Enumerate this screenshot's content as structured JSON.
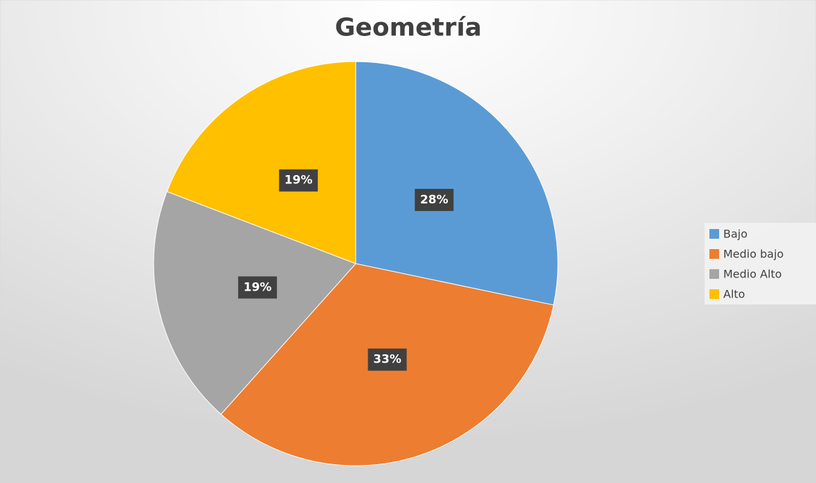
{
  "chart_data": {
    "type": "pie",
    "title": "Geometría",
    "categories": [
      "Bajo",
      "Medio bajo",
      "Medio Alto",
      "Alto"
    ],
    "values": [
      28,
      33,
      19,
      19
    ],
    "value_labels": [
      "28%",
      "33%",
      "19%",
      "19%"
    ],
    "colors": [
      "#5b9bd5",
      "#ed7d31",
      "#a5a5a5",
      "#ffc000"
    ],
    "legend": "right"
  }
}
